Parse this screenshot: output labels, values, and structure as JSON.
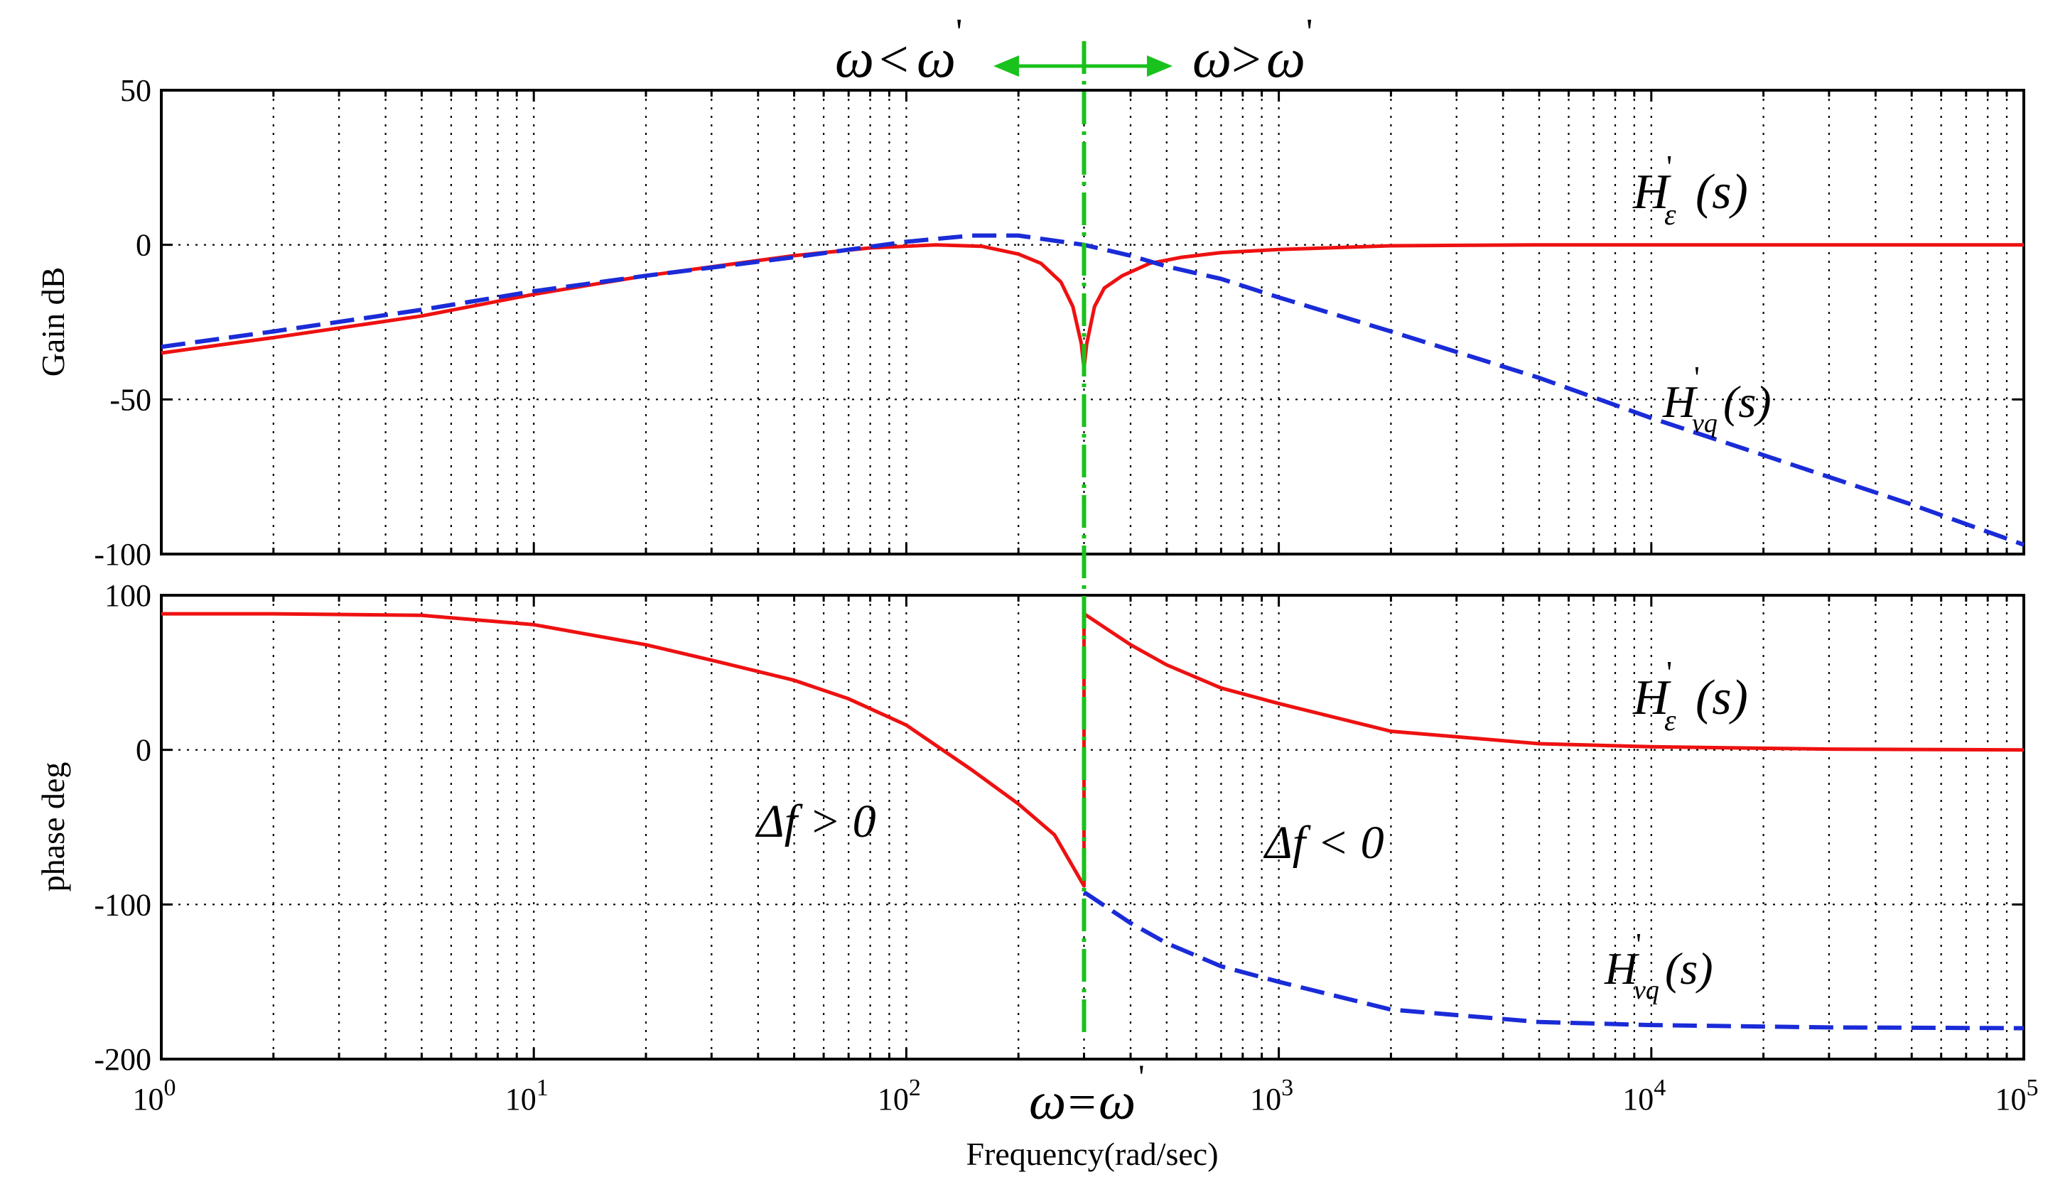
{
  "chart_data": [
    {
      "type": "line",
      "panel": "magnitude",
      "xscale": "log",
      "xlim": [
        1,
        100000
      ],
      "ylim": [
        -100,
        50
      ],
      "yticks": [
        50,
        0,
        -50,
        -100
      ],
      "ylabel": "Gain dB",
      "grid": true,
      "series": [
        {
          "name": "H_epsilon",
          "label_base": "H",
          "label_prime": "'",
          "label_sub": "ε",
          "label_arg": "(s)",
          "color": "#ee1111",
          "style": "solid",
          "x": [
            1,
            2,
            5,
            10,
            20,
            50,
            80,
            120,
            160,
            200,
            230,
            260,
            280,
            295,
            300,
            305,
            320,
            340,
            380,
            450,
            550,
            700,
            1000,
            2000,
            5000,
            100000
          ],
          "y": [
            -35,
            -30,
            -23,
            -16,
            -10,
            -3.5,
            -1,
            0,
            -0.5,
            -3,
            -6,
            -12,
            -20,
            -32,
            -40,
            -32,
            -20,
            -14,
            -10,
            -6,
            -4,
            -2.5,
            -1.5,
            -0.3,
            0,
            0
          ]
        },
        {
          "name": "H_vq",
          "label_base": "H",
          "label_prime": "'",
          "label_sub": "vq",
          "label_arg": "(s)",
          "color": "#1a2bd8",
          "style": "dashed",
          "x": [
            1,
            2,
            5,
            10,
            20,
            50,
            100,
            150,
            200,
            300,
            400,
            500,
            700,
            1000,
            2000,
            5000,
            10000,
            20000,
            50000,
            100000
          ],
          "y": [
            -33,
            -28,
            -21,
            -15,
            -10,
            -4,
            1,
            3,
            3,
            0,
            -3.5,
            -7,
            -11,
            -17,
            -28,
            -43,
            -56,
            -68,
            -84,
            -97
          ]
        }
      ]
    },
    {
      "type": "line",
      "panel": "phase",
      "xscale": "log",
      "xlim": [
        1,
        100000
      ],
      "ylim": [
        -200,
        100
      ],
      "yticks": [
        100,
        0,
        -100,
        -200
      ],
      "ylabel": "phase deg",
      "xlabel": "Frequency(rad/sec)",
      "xticks": [
        {
          "base": "10",
          "exp": "0"
        },
        {
          "base": "10",
          "exp": "1"
        },
        {
          "base": "10",
          "exp": "2"
        },
        {
          "base": "10",
          "exp": "3"
        },
        {
          "base": "10",
          "exp": "4"
        },
        {
          "base": "10",
          "exp": "5"
        }
      ],
      "grid": true,
      "series": [
        {
          "name": "H_epsilon",
          "label_base": "H",
          "label_prime": "'",
          "label_sub": "ε",
          "label_arg": "(s)",
          "color": "#ee1111",
          "style": "solid",
          "x": [
            1,
            2,
            5,
            10,
            20,
            30,
            50,
            70,
            100,
            150,
            200,
            250,
            300,
            300.01,
            400,
            500,
            700,
            1000,
            2000,
            5000,
            10000,
            30000,
            100000
          ],
          "y": [
            88,
            88,
            87,
            81,
            68,
            58,
            45,
            33,
            16,
            -13,
            -35,
            -55,
            -88,
            88,
            68,
            55,
            40,
            30,
            12,
            4,
            2,
            0.5,
            0
          ]
        },
        {
          "name": "H_vq",
          "label_base": "H",
          "label_prime": "'",
          "label_sub": "vq",
          "label_arg": "(s)",
          "color": "#1a2bd8",
          "style": "dashed",
          "x": [
            300,
            400,
            500,
            700,
            1000,
            2000,
            5000,
            10000,
            30000,
            100000
          ],
          "y": [
            -92,
            -112,
            -125,
            -140,
            -150,
            -168,
            -176,
            -178,
            -179.5,
            -180
          ]
        }
      ]
    }
  ],
  "annotations": {
    "omega_symbol": "ω",
    "less_than": "<",
    "greater_than": ">",
    "equals": "=",
    "prime": "'",
    "delta_f_left": "Δf > 0",
    "delta_f_right": "Δf < 0",
    "marker_frequency": 300,
    "marker_color": "#19c21c"
  }
}
